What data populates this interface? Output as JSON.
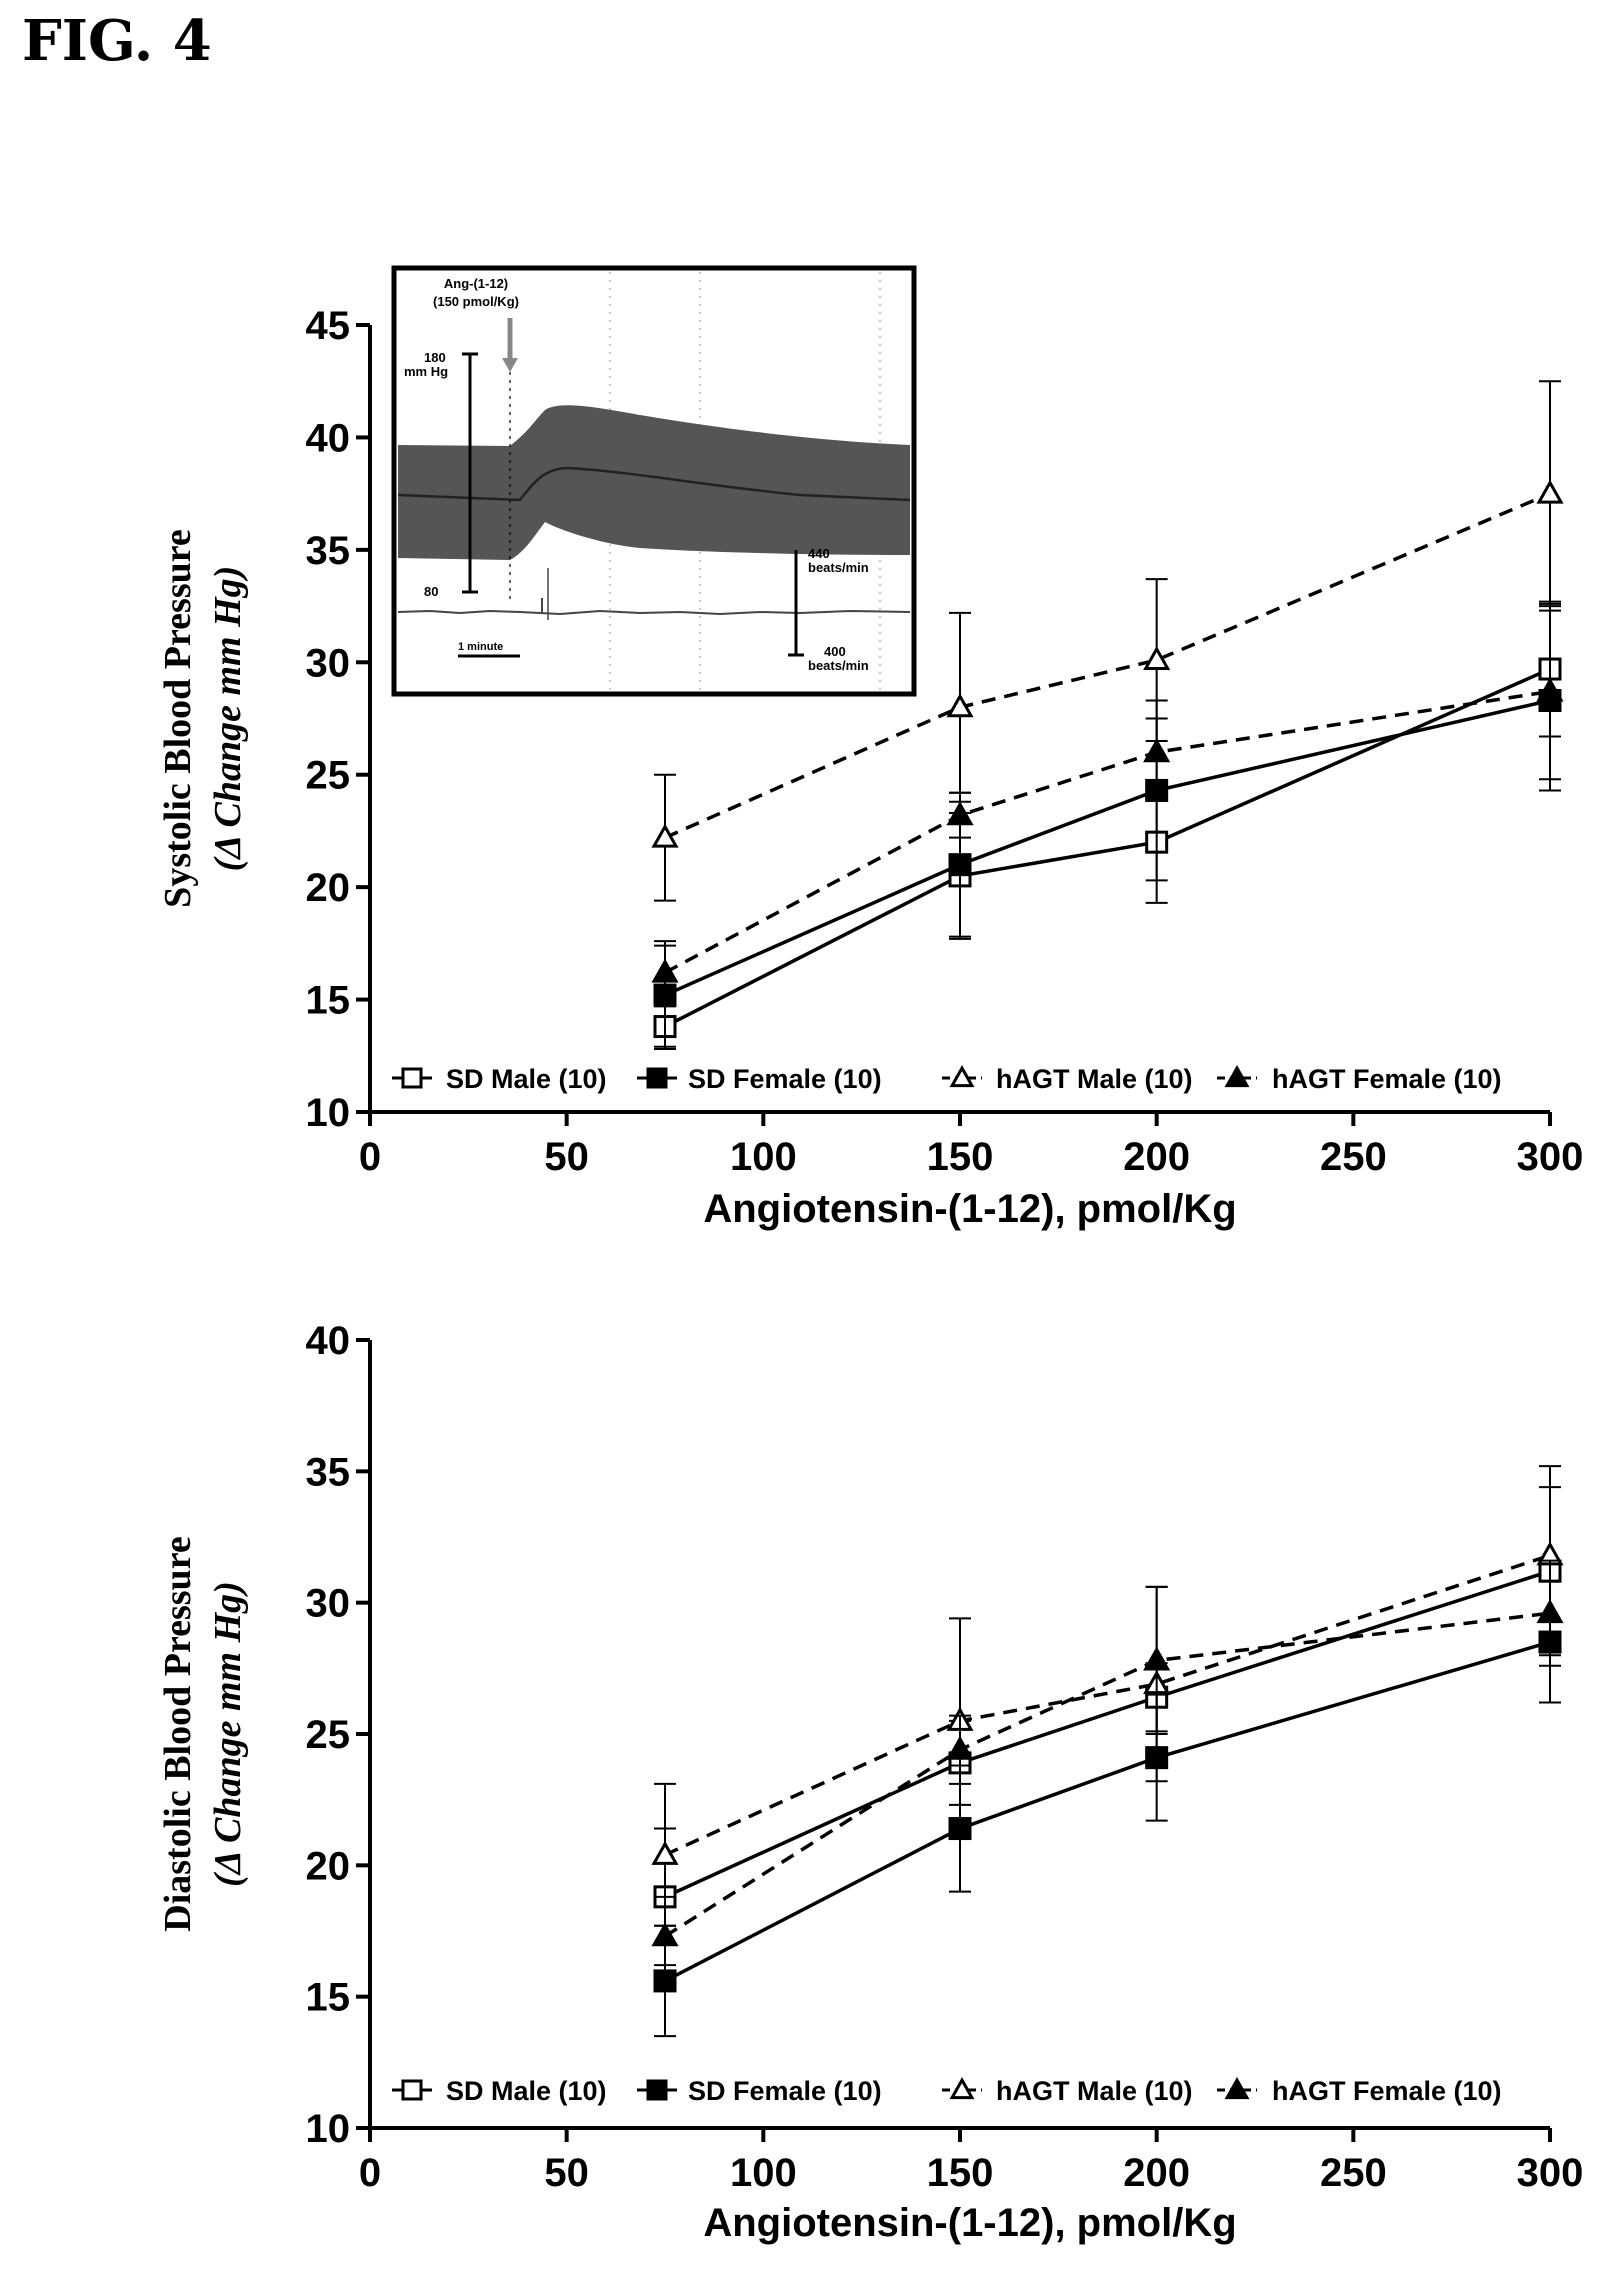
{
  "figure_label": "FIG. 4",
  "inset": {
    "label_line1": "Ang-(1-12)",
    "label_line2": "(150 pmol/Kg)",
    "bp_top_line1": "180",
    "bp_top_line2": "mm Hg",
    "bp_bottom": "80",
    "hr_top_line1": "440",
    "hr_top_line2": "beats/min",
    "hr_bottom_line1": "400",
    "hr_bottom_line2": "beats/min",
    "time_scale": "1 minute"
  },
  "colors": {
    "ink": "#000000",
    "trace": "#555555",
    "background": "#ffffff"
  },
  "chart_data": [
    {
      "type": "line",
      "title": "",
      "xlabel": "Angiotensin-(1-12), pmol/Kg",
      "ylabel_line1": "Systolic Blood Pressure",
      "ylabel_line2": "(Δ Change mm Hg)",
      "xlim": [
        0,
        300
      ],
      "ylim": [
        10,
        45
      ],
      "xticks": [
        0,
        50,
        100,
        150,
        200,
        250,
        300
      ],
      "yticks": [
        10,
        15,
        20,
        25,
        30,
        35,
        40,
        45
      ],
      "x": [
        75,
        150,
        200,
        300
      ],
      "legend_position": "bottom",
      "series": [
        {
          "name": "SD Male (10)",
          "marker": "open-square",
          "line": "solid",
          "values": [
            13.8,
            20.5,
            22.0,
            29.7
          ],
          "errors": [
            0.9,
            2.8,
            2.7,
            3.0
          ]
        },
        {
          "name": "SD Female (10)",
          "marker": "filled-square",
          "line": "solid",
          "values": [
            15.2,
            21.0,
            24.3,
            28.3
          ],
          "errors": [
            2.4,
            3.2,
            4.0,
            4.0
          ]
        },
        {
          "name": "hAGT Male (10)",
          "marker": "open-triangle",
          "line": "dashed",
          "values": [
            22.2,
            28.0,
            30.1,
            37.5
          ],
          "errors": [
            2.8,
            4.2,
            3.6,
            5.0
          ]
        },
        {
          "name": "hAGT Female (10)",
          "marker": "filled-triangle",
          "line": "dashed",
          "values": [
            16.2,
            23.2,
            26.0,
            28.7
          ],
          "errors": [
            1.2,
            1.0,
            1.5,
            3.9
          ]
        }
      ]
    },
    {
      "type": "line",
      "title": "",
      "xlabel": "Angiotensin-(1-12), pmol/Kg",
      "ylabel_line1": "Diastolic Blood Pressure",
      "ylabel_line2": "(Δ Change mm Hg)",
      "xlim": [
        0,
        300
      ],
      "ylim": [
        10,
        40
      ],
      "xticks": [
        0,
        50,
        100,
        150,
        200,
        250,
        300
      ],
      "yticks": [
        10,
        15,
        20,
        25,
        30,
        35,
        40
      ],
      "x": [
        75,
        150,
        200,
        300
      ],
      "legend_position": "bottom",
      "series": [
        {
          "name": "SD Male (10)",
          "marker": "open-square",
          "line": "solid",
          "values": [
            18.8,
            23.9,
            26.4,
            31.2
          ],
          "errors": [
            2.6,
            1.6,
            1.3,
            3.2
          ]
        },
        {
          "name": "SD Female (10)",
          "marker": "filled-square",
          "line": "solid",
          "values": [
            15.6,
            21.4,
            24.1,
            28.5
          ],
          "errors": [
            2.1,
            2.4,
            2.4,
            2.3
          ]
        },
        {
          "name": "hAGT Male (10)",
          "marker": "open-triangle",
          "line": "dashed",
          "values": [
            20.4,
            25.5,
            26.9,
            31.8
          ],
          "errors": [
            2.7,
            3.9,
            3.7,
            3.4
          ]
        },
        {
          "name": "hAGT Female (10)",
          "marker": "filled-triangle",
          "line": "dashed",
          "values": [
            17.3,
            24.4,
            27.8,
            29.6
          ],
          "errors": [
            1.5,
            1.3,
            2.8,
            2.0
          ]
        }
      ]
    }
  ]
}
